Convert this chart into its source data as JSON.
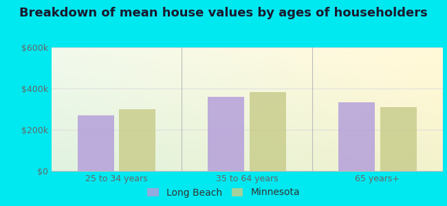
{
  "title": "Breakdown of mean house values by ages of householders",
  "categories": [
    "25 to 34 years",
    "35 to 64 years",
    "65 years+"
  ],
  "long_beach_values": [
    270000,
    360000,
    335000
  ],
  "minnesota_values": [
    300000,
    385000,
    310000
  ],
  "bar_color_lb": "#b39ddb",
  "bar_color_mn": "#c8cc8a",
  "ylim": [
    0,
    600000
  ],
  "yticks": [
    0,
    200000,
    400000,
    600000
  ],
  "ytick_labels": [
    "$0",
    "$200k",
    "$400k",
    "$600k"
  ],
  "legend_lb": "Long Beach",
  "legend_mn": "Minnesota",
  "bg_outer": "#00e8f0",
  "grid_color": "#dddddd",
  "title_fontsize": 13,
  "axis_fontsize": 9,
  "legend_fontsize": 10,
  "bar_width": 0.28,
  "group_positions": [
    1,
    2,
    3
  ],
  "separator_color": "#bbbbbb",
  "tick_label_color": "#666666"
}
